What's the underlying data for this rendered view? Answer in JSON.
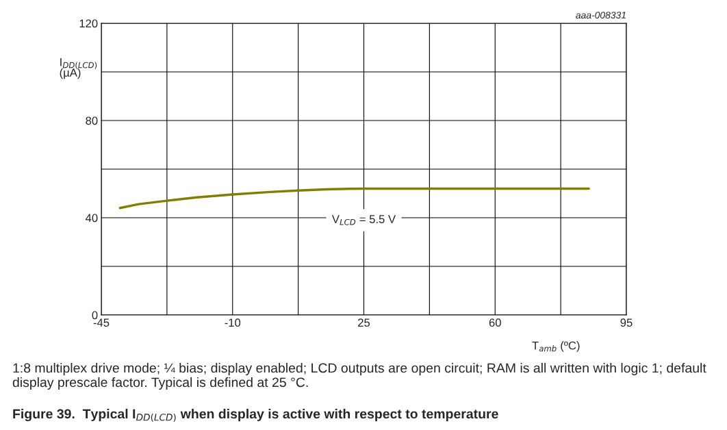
{
  "chart_data": {
    "type": "line",
    "title": "Figure 39.  Typical I$_{DD(LCD)}$ when display is active with respect to temperature",
    "xlabel": "T$_{amb}$ (ºC)",
    "ylabel": "I$_{DD(LCD)}$\n(µA)",
    "annotations": [
      "aaa-008331",
      "1:8 multiplex drive mode; ¼ bias; display enabled; LCD outputs are open circuit; RAM is all written with logic 1; default display prescale factor. Typical is defined at 25 °C."
    ],
    "x": [
      -40,
      -35,
      -27.5,
      -20,
      -10,
      0,
      7.5,
      15,
      25,
      40,
      60,
      85
    ],
    "series": [
      {
        "name": "V$_{LCD}$ = 5.5 V",
        "color": "#7f7f00",
        "values": [
          44,
          45.6,
          47,
          48.3,
          49.6,
          50.6,
          51.2,
          51.7,
          52,
          52,
          52,
          52
        ]
      }
    ],
    "xlim": [
      -45,
      95
    ],
    "ylim": [
      0,
      120
    ],
    "xticks": [
      -45,
      {
        "value": -27.5,
        "label": null
      },
      -10,
      {
        "value": 7.5,
        "label": null
      },
      25,
      {
        "value": 42.5,
        "label": null
      },
      60,
      {
        "value": 77.5,
        "label": null
      },
      95
    ],
    "yticks": [
      0,
      {
        "value": 20,
        "label": null
      },
      40,
      {
        "value": 60,
        "label": null
      },
      80,
      {
        "value": 100,
        "label": null
      },
      120
    ],
    "grid": true,
    "legend": false,
    "marker": "none",
    "line_style": "solid"
  }
}
